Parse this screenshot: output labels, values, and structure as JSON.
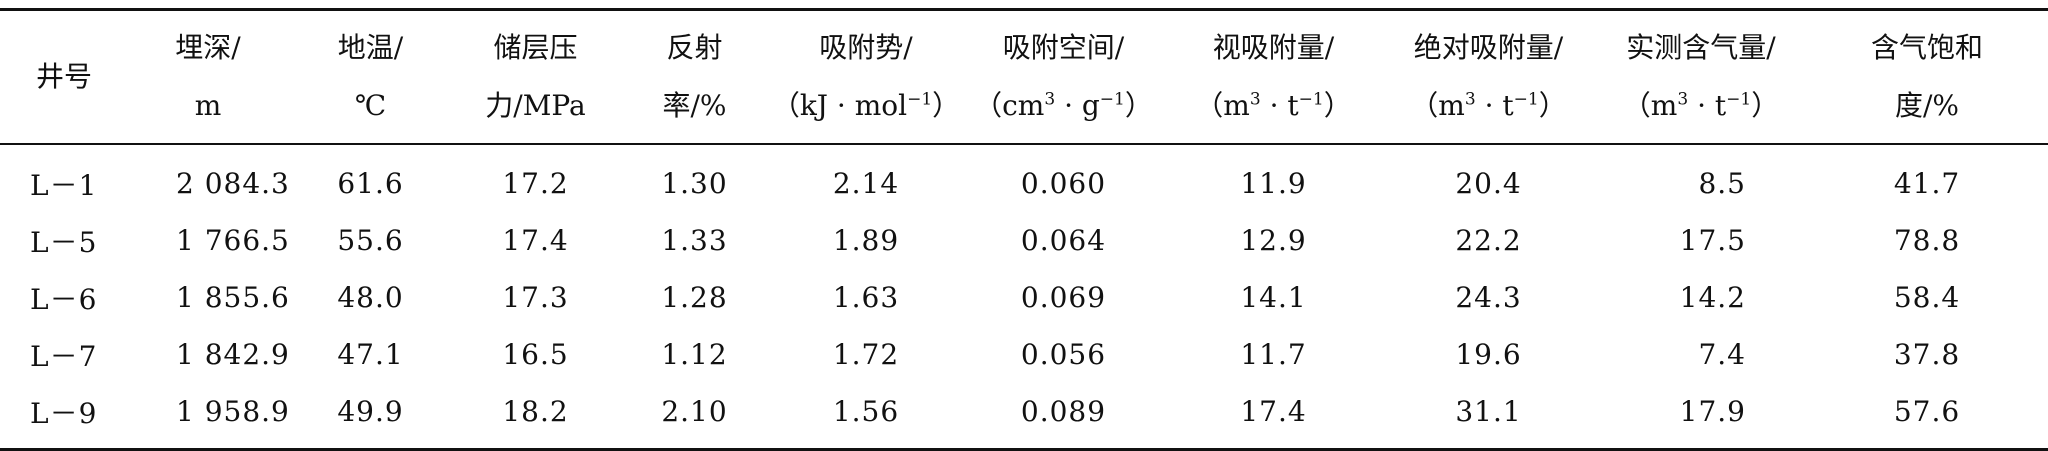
{
  "table": {
    "headers": [
      {
        "line1": "井号",
        "line2": ""
      },
      {
        "line1": "埋深/",
        "line2": "m"
      },
      {
        "line1": "地温/",
        "line2": "℃"
      },
      {
        "line1": "储层压",
        "line2": "力/MPa"
      },
      {
        "line1": "反射",
        "line2": "率/%"
      },
      {
        "line1": "吸附势/",
        "line2_pre": "（kJ · mol",
        "line2_sup": "−1",
        "line2_post": "）"
      },
      {
        "line1": "吸附空间/",
        "line2_pre": "（cm",
        "line2_sup": "3",
        "line2_mid": " · g",
        "line2_sup2": "−1",
        "line2_post": "）"
      },
      {
        "line1": "视吸附量/",
        "line2_pre": "（m",
        "line2_sup": "3",
        "line2_mid": " · t",
        "line2_sup2": "−1",
        "line2_post": "）"
      },
      {
        "line1": "绝对吸附量/",
        "line2_pre": "（m",
        "line2_sup": "3",
        "line2_mid": " · t",
        "line2_sup2": "−1",
        "line2_post": "）"
      },
      {
        "line1": "实测含气量/",
        "line2_pre": "（m",
        "line2_sup": "3",
        "line2_mid": " · t",
        "line2_sup2": "−1",
        "line2_post": "）"
      },
      {
        "line1": "含气饱和",
        "line2": "度/%"
      }
    ],
    "rows": [
      [
        "L－1",
        "2 084.3",
        "61.6",
        "17.2",
        "1.30",
        "2.14",
        "0.060",
        "11.9",
        "20.4",
        "8.5",
        "41.7"
      ],
      [
        "L－5",
        "1 766.5",
        "55.6",
        "17.4",
        "1.33",
        "1.89",
        "0.064",
        "12.9",
        "22.2",
        "17.5",
        "78.8"
      ],
      [
        "L－6",
        "1 855.6",
        "48.0",
        "17.3",
        "1.28",
        "1.63",
        "0.069",
        "14.1",
        "24.3",
        "14.2",
        "58.4"
      ],
      [
        "L－7",
        "1 842.9",
        "47.1",
        "16.5",
        "1.12",
        "1.72",
        "0.056",
        "11.7",
        "19.6",
        "7.4",
        "37.8"
      ],
      [
        "L－9",
        "1 958.9",
        "49.9",
        "18.2",
        "2.10",
        "1.56",
        "0.089",
        "17.4",
        "31.1",
        "17.9",
        "57.6"
      ]
    ]
  }
}
